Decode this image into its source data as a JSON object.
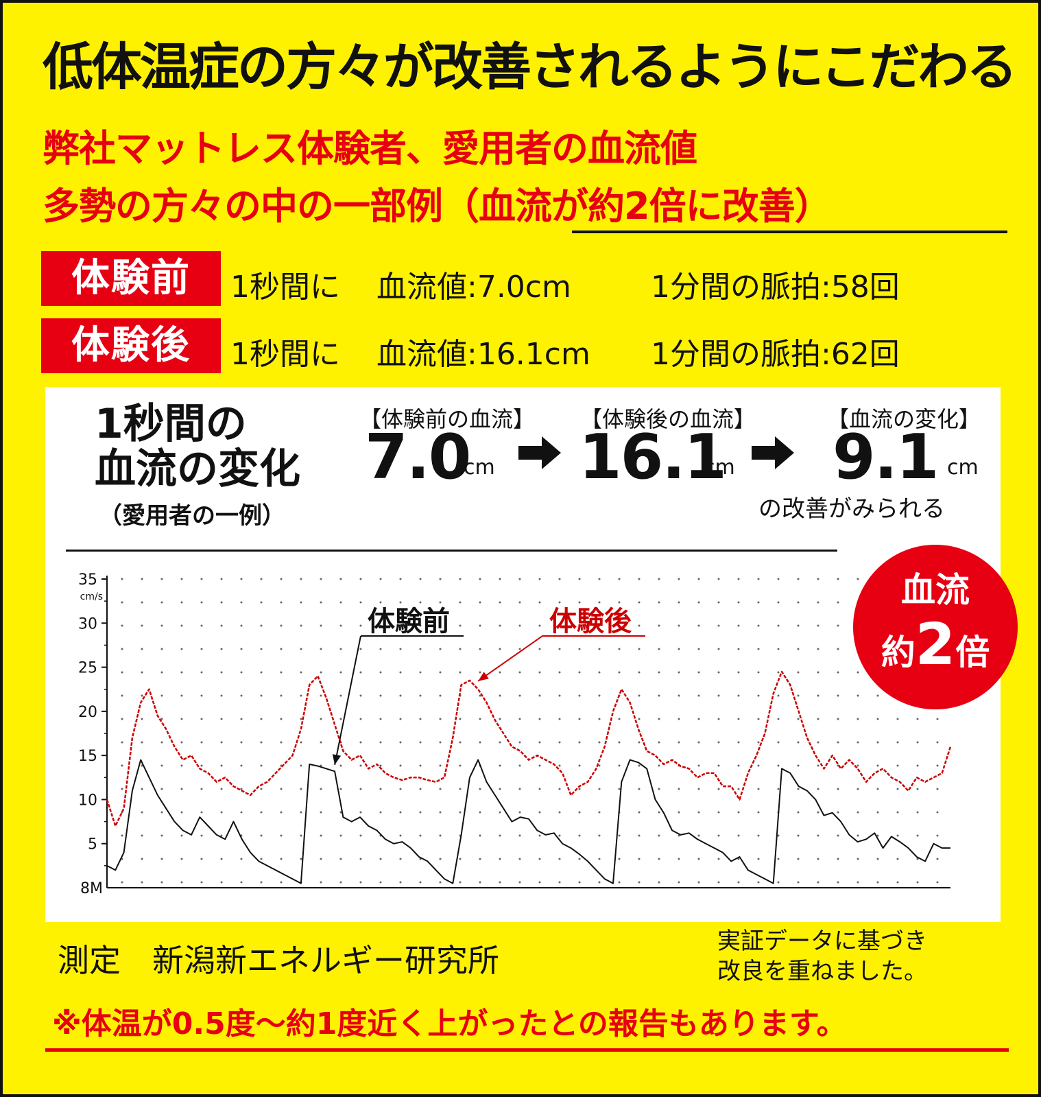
{
  "headline": "低体温症の方々が改善されるようにこだわる",
  "subtitle_line1": "弊社マットレス体験者、愛用者の血流値",
  "subtitle_line2": "多勢の方々の中の一部例（血流が約2倍に改善）",
  "before": {
    "tag": "体験前",
    "per_second": "1秒間に",
    "blood_flow": "血流値:7.0cm",
    "pulse": "1分間の脈拍:58回"
  },
  "after": {
    "tag": "体験後",
    "per_second": "1秒間に",
    "blood_flow": "血流値:16.1cm",
    "pulse": "1分間の脈拍:62回"
  },
  "change_panel": {
    "title_line1": "1秒間の",
    "title_line2": "血流の変化",
    "title_note": "（愛用者の一例）",
    "before_label": "【体験前の血流】",
    "before_value": "7.0",
    "after_label": "【体験後の血流】",
    "after_value": "16.1",
    "diff_label": "【血流の変化】",
    "diff_value": "9.1",
    "unit": "cm",
    "diff_note": "の改善がみられる"
  },
  "badge": {
    "line1": "血流",
    "line2_prefix": "約",
    "line2_num": "2",
    "line2_suffix": "倍"
  },
  "chart_data": {
    "type": "line",
    "ylabel": "cm/s",
    "origin_label": "8M",
    "y_ticks": [
      "35",
      "30",
      "25",
      "20",
      "15",
      "10",
      "5"
    ],
    "ylim": [
      0,
      35
    ],
    "xlim": [
      0,
      100
    ],
    "grid": "dotted",
    "annotations": [
      {
        "text": "体験前",
        "series": "体験前",
        "point": [
          27,
          13
        ]
      },
      {
        "text": "体験後",
        "series": "体験後",
        "point": [
          44,
          22.5
        ]
      }
    ],
    "series": [
      {
        "name": "体験前",
        "color": "#111111",
        "x": [
          0,
          1,
          2,
          3,
          4,
          5,
          6,
          7,
          8,
          9,
          10,
          11,
          12,
          13,
          14,
          15,
          16,
          17,
          18,
          19,
          20,
          21,
          22,
          23,
          24,
          25,
          26,
          27,
          28,
          29,
          30,
          31,
          32,
          33,
          34,
          35,
          36,
          37,
          38,
          39,
          40,
          41,
          42,
          43,
          44,
          45,
          46,
          47,
          48,
          49,
          50,
          51,
          52,
          53,
          54,
          55,
          56,
          57,
          58,
          59,
          60,
          61,
          62,
          63,
          64,
          65,
          66,
          67,
          68,
          69,
          70,
          71,
          72,
          73,
          74,
          75,
          76,
          77,
          78,
          79,
          80,
          81,
          82,
          83,
          84,
          85,
          86,
          87,
          88,
          89,
          90,
          91,
          92,
          93,
          94,
          95,
          96,
          97,
          98,
          99,
          100
        ],
        "values": [
          2.5,
          2,
          4,
          11,
          14.5,
          12.5,
          10.5,
          9,
          7.5,
          6.5,
          6,
          8,
          7,
          6,
          5.5,
          7.5,
          5.5,
          4,
          3,
          2.5,
          2,
          1.5,
          1,
          0.5,
          14,
          13.8,
          13.5,
          13.2,
          8,
          7.5,
          8,
          7,
          6.5,
          5.5,
          5,
          5.2,
          4.5,
          3.5,
          3,
          2,
          1,
          0.5,
          6,
          12.5,
          14.5,
          12,
          10.5,
          9,
          7.5,
          8,
          7.8,
          6.5,
          6,
          6.2,
          5,
          4.5,
          3.8,
          3,
          2,
          1,
          0.5,
          12,
          14.5,
          14.2,
          13.5,
          10,
          8.5,
          6.5,
          6,
          6.2,
          5.5,
          5,
          4.5,
          4,
          3,
          3.5,
          2,
          1.5,
          1,
          0.5,
          13.5,
          13,
          11.5,
          11,
          10,
          8.2,
          8.5,
          7.5,
          6,
          5.2,
          5.5,
          6.2,
          4.5,
          5.8,
          5.2,
          4.5,
          3.5,
          3,
          5,
          4.5,
          4.5
        ]
      },
      {
        "name": "体験後",
        "color": "#cc0000",
        "x": [
          0,
          1,
          2,
          3,
          4,
          5,
          6,
          7,
          8,
          9,
          10,
          11,
          12,
          13,
          14,
          15,
          16,
          17,
          18,
          19,
          20,
          21,
          22,
          23,
          24,
          25,
          26,
          27,
          28,
          29,
          30,
          31,
          32,
          33,
          34,
          35,
          36,
          37,
          38,
          39,
          40,
          41,
          42,
          43,
          44,
          45,
          46,
          47,
          48,
          49,
          50,
          51,
          52,
          53,
          54,
          55,
          56,
          57,
          58,
          59,
          60,
          61,
          62,
          63,
          64,
          65,
          66,
          67,
          68,
          69,
          70,
          71,
          72,
          73,
          74,
          75,
          76,
          77,
          78,
          79,
          80,
          81,
          82,
          83,
          84,
          85,
          86,
          87,
          88,
          89,
          90,
          91,
          92,
          93,
          94,
          95,
          96,
          97,
          98,
          99,
          100
        ],
        "values": [
          10,
          7,
          9,
          17,
          21,
          22.5,
          19.5,
          18,
          16,
          14.5,
          15,
          13.5,
          13,
          12,
          12.5,
          11.5,
          11,
          10.5,
          11.5,
          12,
          13,
          14,
          15,
          18,
          23,
          24,
          21.5,
          18.5,
          15.5,
          14.5,
          15,
          13.5,
          14,
          13,
          12.5,
          12.2,
          12.5,
          12.5,
          12.2,
          12,
          12.5,
          17,
          23,
          23.5,
          22.5,
          21,
          19,
          17.5,
          16,
          15.5,
          14.5,
          15,
          14.5,
          14,
          13,
          10.5,
          11.5,
          12,
          13.5,
          16,
          20,
          22.5,
          21,
          18,
          15.5,
          15,
          14,
          14.5,
          13.8,
          13.5,
          12.5,
          13,
          13,
          11.5,
          11.5,
          10,
          13,
          15,
          17.5,
          22,
          24.5,
          23,
          20,
          17,
          15,
          13.5,
          15,
          13.5,
          14.5,
          13.5,
          12,
          13,
          13.5,
          12.5,
          12,
          11,
          12.5,
          12,
          12.5,
          13,
          16
        ]
      }
    ]
  }
}
